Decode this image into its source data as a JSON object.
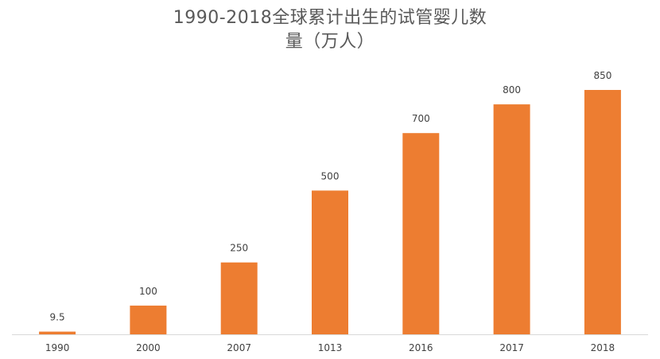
{
  "chart_data": {
    "type": "bar",
    "title_line1": "1990-2018全球累计出生的试管婴儿数",
    "title_line2": "量（万人）",
    "categories": [
      "1990",
      "2000",
      "2007",
      "1013",
      "2016",
      "2017",
      "2018"
    ],
    "values": [
      9.5,
      100,
      250,
      500,
      700,
      800,
      850
    ],
    "value_labels": [
      "9.5",
      "100",
      "250",
      "500",
      "700",
      "800",
      "850"
    ],
    "xlabel": "",
    "ylabel": "",
    "ylim": [
      0,
      850
    ],
    "grid": false,
    "legend": "none",
    "bar_color": "#ED7D31",
    "axis_color": "#D9D9D9"
  }
}
